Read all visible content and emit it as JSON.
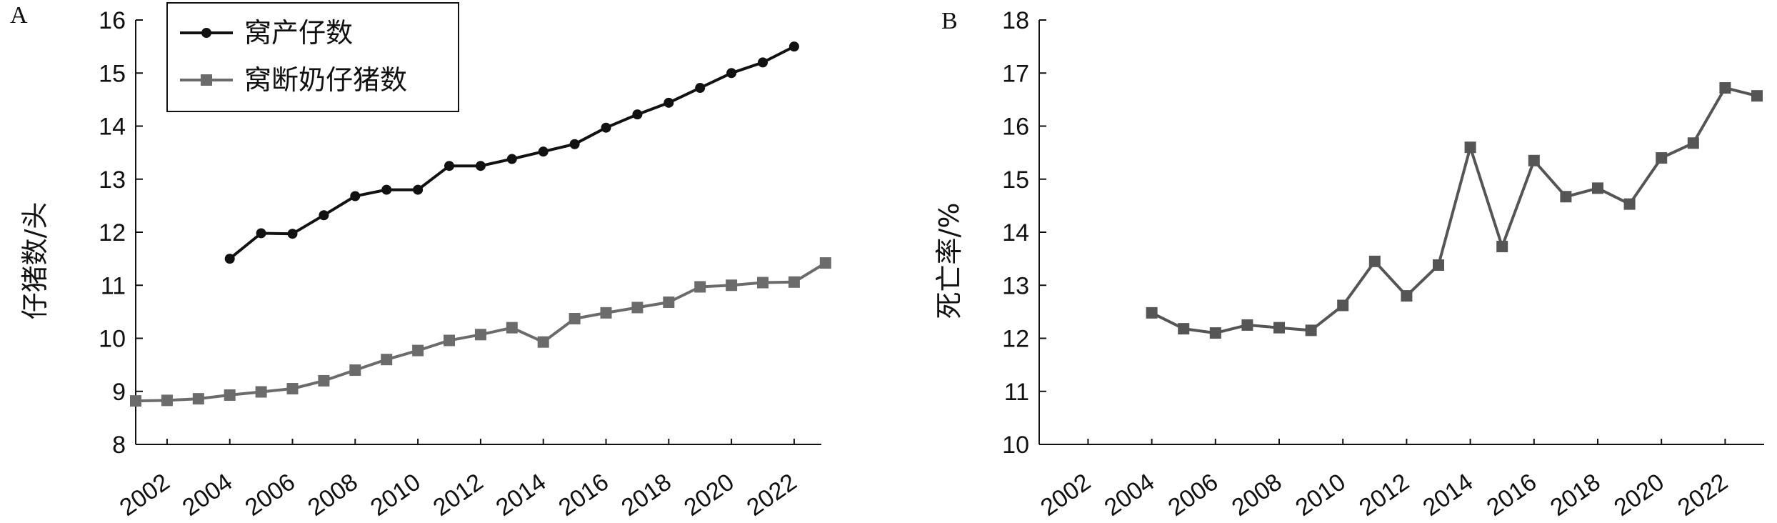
{
  "chart_data": [
    {
      "panel": "A",
      "type": "line",
      "xlabel": "",
      "ylabel": "仔猪数/头",
      "ylim": [
        8,
        16
      ],
      "yticks": [
        "8",
        "9",
        "10",
        "11",
        "12",
        "13",
        "14",
        "15",
        "16"
      ],
      "xticks": [
        "2002",
        "2004",
        "2006",
        "2008",
        "2010",
        "2012",
        "2014",
        "2016",
        "2018",
        "2020",
        "2022"
      ],
      "legend": "top-left",
      "series": [
        {
          "name": "窝产仔数",
          "color": "#111111",
          "marker": "circle",
          "x": [
            2004,
            2005,
            2006,
            2007,
            2008,
            2009,
            2010,
            2011,
            2012,
            2013,
            2014,
            2015,
            2016,
            2017,
            2018,
            2019,
            2020,
            2021,
            2022
          ],
          "values": [
            11.5,
            11.98,
            11.97,
            12.32,
            12.68,
            12.8,
            12.8,
            13.25,
            13.25,
            13.38,
            13.52,
            13.66,
            13.97,
            14.22,
            14.44,
            14.72,
            15.0,
            15.2,
            15.5
          ]
        },
        {
          "name": "窝断奶仔猪数",
          "color": "#6b6b6b",
          "marker": "square",
          "x": [
            2001,
            2002,
            2003,
            2004,
            2005,
            2006,
            2007,
            2008,
            2009,
            2010,
            2011,
            2012,
            2013,
            2014,
            2015,
            2016,
            2017,
            2018,
            2019,
            2020,
            2021,
            2022,
            2023
          ],
          "values": [
            8.82,
            8.83,
            8.86,
            8.93,
            8.99,
            9.05,
            9.2,
            9.4,
            9.6,
            9.77,
            9.96,
            10.07,
            10.2,
            9.93,
            10.37,
            10.48,
            10.58,
            10.68,
            10.97,
            11.0,
            11.05,
            11.06,
            11.42
          ]
        }
      ]
    },
    {
      "panel": "B",
      "type": "line",
      "xlabel": "",
      "ylabel": "死亡率/%",
      "ylim": [
        10,
        18
      ],
      "yticks": [
        "10",
        "11",
        "12",
        "13",
        "14",
        "15",
        "16",
        "17",
        "18"
      ],
      "xticks": [
        "2002",
        "2004",
        "2006",
        "2008",
        "2010",
        "2012",
        "2014",
        "2016",
        "2018",
        "2020",
        "2022"
      ],
      "series": [
        {
          "color": "#555555",
          "marker": "square",
          "x": [
            2004,
            2005,
            2006,
            2007,
            2008,
            2009,
            2010,
            2011,
            2012,
            2013,
            2014,
            2015,
            2016,
            2017,
            2018,
            2019,
            2020,
            2021,
            2022,
            2023
          ],
          "values": [
            12.48,
            12.18,
            12.1,
            12.25,
            12.2,
            12.15,
            12.62,
            13.45,
            12.8,
            13.38,
            15.6,
            13.73,
            15.35,
            14.67,
            14.83,
            14.53,
            15.4,
            15.68,
            16.72,
            16.57
          ]
        }
      ]
    }
  ]
}
